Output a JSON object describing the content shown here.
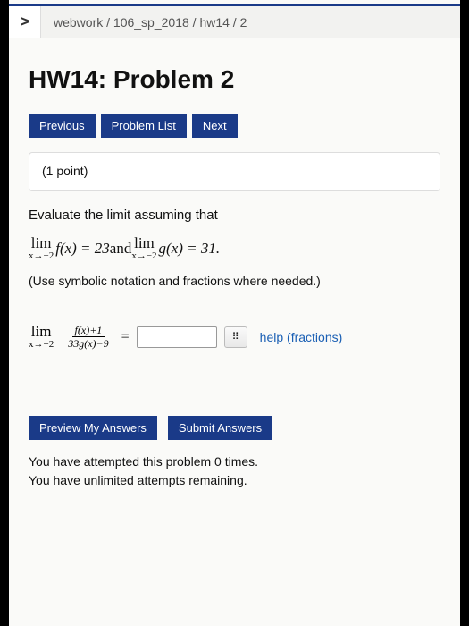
{
  "breadcrumb": {
    "arrow": ">",
    "path": "webwork / 106_sp_2018 / hw14 / 2"
  },
  "title": "HW14: Problem 2",
  "nav": {
    "prev": "Previous",
    "list": "Problem List",
    "next": "Next"
  },
  "points": "(1 point)",
  "problem": {
    "intro": "Evaluate the limit assuming that",
    "limit1_lim": "lim",
    "limit1_sub": "x→−2",
    "limit1_expr": " f(x) = 23 ",
    "and": "and ",
    "limit2_lim": "lim",
    "limit2_sub": "x→−2",
    "limit2_expr": " g(x) = 31.",
    "hint": "(Use symbolic notation and fractions where needed.)"
  },
  "answer": {
    "lim": "lim",
    "sub": "x→−2",
    "frac_top": "f(x)+1",
    "frac_bot": "33g(x)−9",
    "equals": "=",
    "keypad_icon": "⠿",
    "help": "help (fractions)"
  },
  "bottom": {
    "preview": "Preview My Answers",
    "submit": "Submit Answers"
  },
  "footer": {
    "line1": "You have attempted this problem 0 times.",
    "line2": "You have unlimited attempts remaining."
  },
  "colors": {
    "button_bg": "#1a3a88",
    "link": "#1a5fb4"
  }
}
